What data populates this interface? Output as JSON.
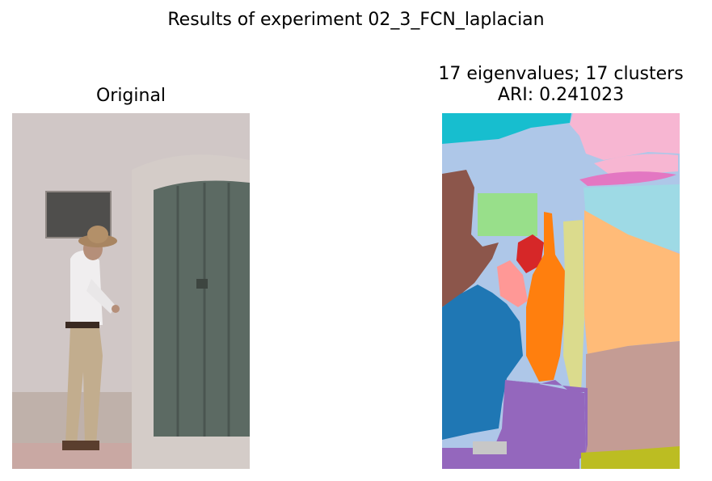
{
  "figure": {
    "suptitle": "Results of experiment 02_3_FCN_laplacian"
  },
  "left_panel": {
    "title": "Original"
  },
  "right_panel": {
    "title_line1": "17 eigenvalues; 17 clusters",
    "title_line2": "ARI: 0.241023"
  },
  "segmentation_colors": [
    "#17becf",
    "#aec7e8",
    "#f7b6d2",
    "#e377c2",
    "#9edae5",
    "#8c564b",
    "#98df8a",
    "#d62728",
    "#ff9896",
    "#ff7f0e",
    "#dbdb8d",
    "#ffbb78",
    "#1f77b4",
    "#c49c94",
    "#9467bd",
    "#c7c7c7",
    "#bcbd22"
  ]
}
